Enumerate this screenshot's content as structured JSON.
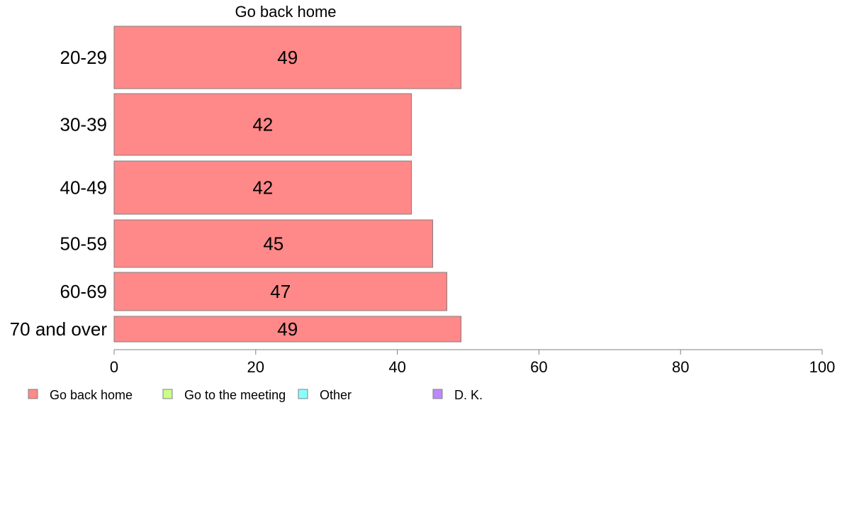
{
  "chart_data": {
    "type": "bar",
    "orientation": "horizontal",
    "title": "Go back home",
    "categories": [
      "20-29",
      "30-39",
      "40-49",
      "50-59",
      "60-69",
      "70 and over"
    ],
    "series": [
      {
        "name": "Go back home",
        "color": "#ff8888",
        "values": [
          49,
          42,
          42,
          45,
          47,
          49
        ]
      }
    ],
    "xlim": [
      0,
      100
    ],
    "xticks": [
      0,
      20,
      40,
      60,
      80,
      100
    ],
    "grid": false,
    "legend": {
      "placement": "bottom-left",
      "entries": [
        {
          "label": "Go back home",
          "color": "#ff8888"
        },
        {
          "label": "Go to the meeting",
          "color": "#ccff88"
        },
        {
          "label": "Other",
          "color": "#88ffff"
        },
        {
          "label": "D. K.",
          "color": "#bb88ff"
        }
      ]
    }
  }
}
